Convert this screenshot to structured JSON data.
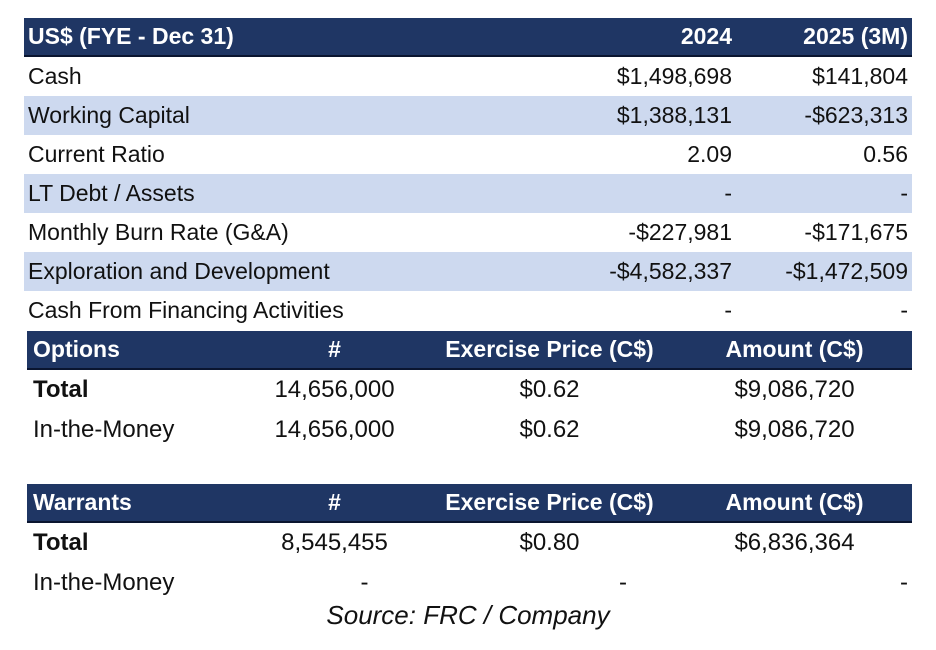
{
  "financials": {
    "header": {
      "label": "US$ (FYE - Dec 31)",
      "col1": "2024",
      "col2": "2025 (3M)"
    },
    "rows": [
      {
        "label": "Cash",
        "v1": "$1,498,698",
        "v2": "$141,804"
      },
      {
        "label": "Working Capital",
        "v1": "$1,388,131",
        "v2": "-$623,313"
      },
      {
        "label": "Current Ratio",
        "v1": "2.09",
        "v2": "0.56"
      },
      {
        "label": "LT Debt / Assets",
        "v1": "-",
        "v2": "-"
      },
      {
        "label": "Monthly Burn Rate (G&A)",
        "v1": "-$227,981",
        "v2": "-$171,675"
      },
      {
        "label": "Exploration and Development",
        "v1": "-$4,582,337",
        "v2": "-$1,472,509"
      },
      {
        "label": "Cash From Financing Activities",
        "v1": "-",
        "v2": "-"
      }
    ]
  },
  "options": {
    "header": {
      "label": "Options",
      "count": "#",
      "price": "Exercise Price (C$)",
      "amount": "Amount (C$)"
    },
    "rows": [
      {
        "label": "Total",
        "count": "14,656,000",
        "price": "$0.62",
        "amount": "$9,086,720"
      },
      {
        "label": "In-the-Money",
        "count": "14,656,000",
        "price": "$0.62",
        "amount": "$9,086,720"
      }
    ]
  },
  "warrants": {
    "header": {
      "label": "Warrants",
      "count": "#",
      "price": "Exercise Price (C$)",
      "amount": "Amount (C$)"
    },
    "rows": [
      {
        "label": "Total",
        "count": "8,545,455",
        "price": "$0.80",
        "amount": "$6,836,364"
      },
      {
        "label": "In-the-Money",
        "count": "-",
        "price": "-",
        "amount": "-"
      }
    ]
  },
  "source": "Source: FRC / Company",
  "colors": {
    "header_bg": "#1f3664",
    "shade_bg": "#cdd9ef",
    "header_text": "#ffffff"
  }
}
